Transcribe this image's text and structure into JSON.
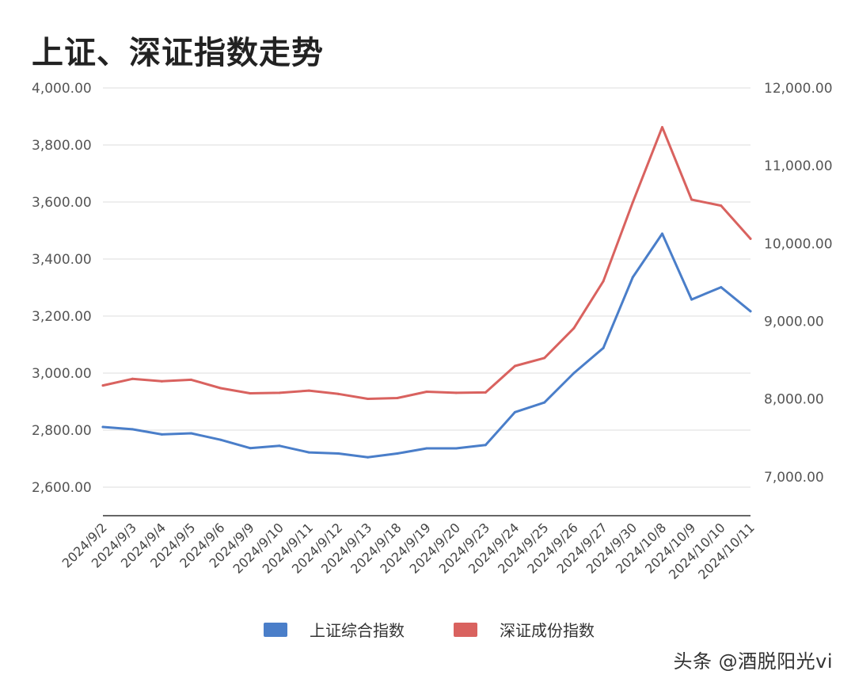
{
  "chart_data": {
    "type": "line",
    "title": "上证、深证指数走势",
    "categories": [
      "2024/9/2",
      "2024/9/3",
      "2024/9/4",
      "2024/9/5",
      "2024/9/6",
      "2024/9/9",
      "2024/9/10",
      "2024/9/11",
      "2024/9/12",
      "2024/9/13",
      "2024/9/18",
      "2024/9/19",
      "2024/9/20",
      "2024/9/23",
      "2024/9/24",
      "2024/9/25",
      "2024/9/26",
      "2024/9/27",
      "2024/9/30",
      "2024/10/8",
      "2024/10/9",
      "2024/10/10",
      "2024/10/11"
    ],
    "series": [
      {
        "name": "上证综合指数",
        "axis": "left",
        "color": "#4a7ec9",
        "values": [
          2811,
          2803,
          2785,
          2789,
          2766,
          2737,
          2745,
          2722,
          2718,
          2705,
          2718,
          2736,
          2736,
          2748,
          2863,
          2897,
          3000,
          3088,
          3336,
          3489,
          3258,
          3301,
          3217
        ]
      },
      {
        "name": "深证成份指数",
        "axis": "right",
        "color": "#d9625f",
        "values": [
          8174,
          8259,
          8228,
          8248,
          8140,
          8074,
          8080,
          8108,
          8065,
          8002,
          8012,
          8094,
          8080,
          8085,
          8425,
          8528,
          8911,
          9515,
          10529,
          11495,
          10564,
          10486,
          10061
        ]
      }
    ],
    "y_left": {
      "min": 2500,
      "max": 4000,
      "ticks": [
        2600,
        2800,
        3000,
        3200,
        3400,
        3600,
        3800,
        4000
      ],
      "labels": [
        "2,600.00",
        "2,800.00",
        "3,000.00",
        "3,200.00",
        "3,400.00",
        "3,600.00",
        "3,800.00",
        "4,000.00"
      ]
    },
    "y_right": {
      "min": 6500,
      "max": 12000,
      "ticks": [
        7000,
        8000,
        9000,
        10000,
        11000,
        12000
      ],
      "labels": [
        "7,000.00",
        "8,000.00",
        "9,000.00",
        "10,000.00",
        "11,000.00",
        "12,000.00"
      ]
    },
    "grid": true,
    "legend_position": "bottom"
  },
  "legend": [
    {
      "label": "上证综合指数",
      "color": "#4a7ec9"
    },
    {
      "label": "深证成份指数",
      "color": "#d9625f"
    }
  ],
  "watermark": "头条 @酒脱阳光vi"
}
